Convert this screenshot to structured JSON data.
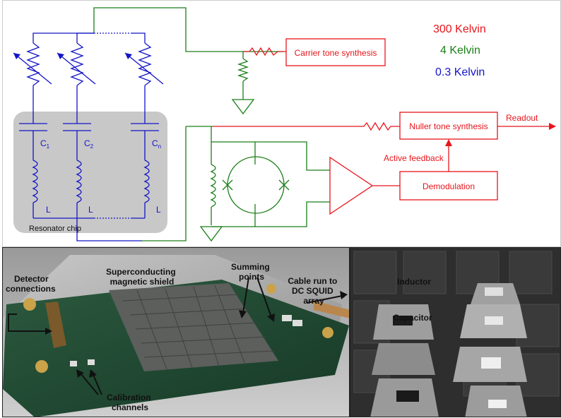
{
  "legend": {
    "red": {
      "text": "300 Kelvin",
      "color": "#e8151b"
    },
    "green": {
      "text": "4 Kelvin",
      "color": "#1a7f17"
    },
    "blue": {
      "text": "0.3 Kelvin",
      "color": "#1414c8"
    }
  },
  "schematic": {
    "carrier_box": "Carrier tone synthesis",
    "nuller_box": "Nuller tone synthesis",
    "demod_box": "Demodulation",
    "active_feedback": "Active feedback",
    "readout": "Readout",
    "chip_label": "Resonator chip",
    "caps": [
      {
        "main": "C",
        "sub": "1"
      },
      {
        "main": "C",
        "sub": "2"
      },
      {
        "main": "C",
        "sub": "n"
      }
    ],
    "inductor_label": "L"
  },
  "board_photo": {
    "detector_connections": "Detector\nconnections",
    "shield": "Superconducting\nmagnetic shield",
    "summing": "Summing\npoints",
    "cable": "Cable run to\nDC SQUID\narray",
    "calibration": "Calibration\nchannels"
  },
  "chip_photo": {
    "inductor": "Inductor",
    "capacitor": "Capacitor"
  }
}
